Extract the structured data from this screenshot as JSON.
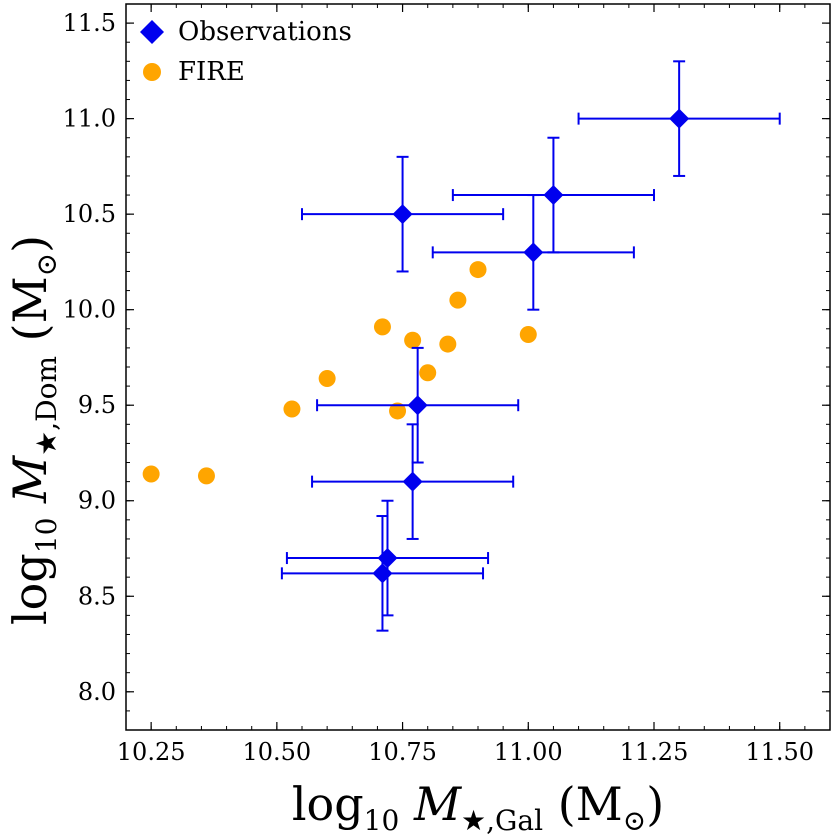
{
  "chart_data": {
    "type": "scatter",
    "title": "",
    "xlabel": {
      "base": "log",
      "sub": "10",
      "var": "M",
      "var_sub": "★,Gal",
      "unit": "(M",
      "unit_sub": "⊙",
      "close": ")"
    },
    "ylabel": {
      "base": "log",
      "sub": "10",
      "var": "M",
      "var_sub": "★,Dom",
      "unit": "(M",
      "unit_sub": "⊙",
      "close": ")"
    },
    "xlim": [
      10.2,
      11.6
    ],
    "ylim": [
      7.8,
      11.6
    ],
    "xticks": [
      "10.25",
      "10.50",
      "10.75",
      "11.00",
      "11.25",
      "11.50"
    ],
    "yticks": [
      "8.0",
      "8.5",
      "9.0",
      "9.5",
      "10.0",
      "10.5",
      "11.0",
      "11.5"
    ],
    "legend_position": "top-left",
    "colors": {
      "observations": "#0000ee",
      "fire": "#ffa500"
    },
    "series": [
      {
        "name": "Observations",
        "marker": "diamond",
        "points": [
          {
            "x": 11.3,
            "y": 11.0,
            "xerr": 0.2,
            "yerr": 0.3
          },
          {
            "x": 10.75,
            "y": 10.5,
            "xerr": 0.2,
            "yerr": 0.3
          },
          {
            "x": 11.05,
            "y": 10.6,
            "xerr": 0.2,
            "yerr": 0.3
          },
          {
            "x": 11.01,
            "y": 10.3,
            "xerr": 0.2,
            "yerr": 0.3
          },
          {
            "x": 10.78,
            "y": 9.5,
            "xerr": 0.2,
            "yerr": 0.3
          },
          {
            "x": 10.77,
            "y": 9.1,
            "xerr": 0.2,
            "yerr": 0.3
          },
          {
            "x": 10.72,
            "y": 8.7,
            "xerr": 0.2,
            "yerr": 0.3
          },
          {
            "x": 10.71,
            "y": 8.62,
            "xerr": 0.2,
            "yerr": 0.3
          }
        ]
      },
      {
        "name": "FIRE",
        "marker": "circle",
        "points": [
          {
            "x": 10.25,
            "y": 9.14
          },
          {
            "x": 10.36,
            "y": 9.13
          },
          {
            "x": 10.53,
            "y": 9.48
          },
          {
            "x": 10.6,
            "y": 9.64
          },
          {
            "x": 10.71,
            "y": 9.91
          },
          {
            "x": 10.74,
            "y": 9.47
          },
          {
            "x": 10.77,
            "y": 9.84
          },
          {
            "x": 10.8,
            "y": 9.67
          },
          {
            "x": 10.84,
            "y": 9.82
          },
          {
            "x": 10.86,
            "y": 10.05
          },
          {
            "x": 10.9,
            "y": 10.21
          },
          {
            "x": 11.0,
            "y": 9.87
          }
        ]
      }
    ]
  }
}
